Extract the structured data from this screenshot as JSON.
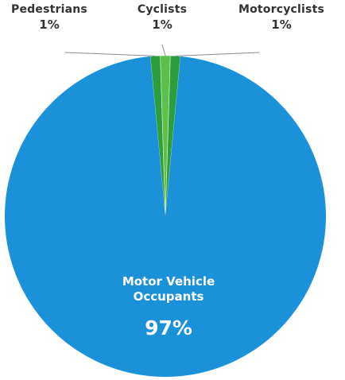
{
  "chart_data": {
    "type": "pie",
    "title": "",
    "slices": [
      {
        "label": "Pedestrians",
        "value": 1,
        "display": "1%",
        "color": "#2d9e3e"
      },
      {
        "label": "Cyclists",
        "value": 1,
        "display": "1%",
        "color": "#5cc04a"
      },
      {
        "label": "Motorcyclists",
        "value": 1,
        "display": "1%",
        "color": "#2d9e3e"
      },
      {
        "label": "Motor Vehicle Occupants",
        "value": 97,
        "display": "97%",
        "color": "#1b91d9"
      }
    ],
    "slice_label_lines": [
      "Motor Vehicle",
      "Occupants"
    ]
  }
}
